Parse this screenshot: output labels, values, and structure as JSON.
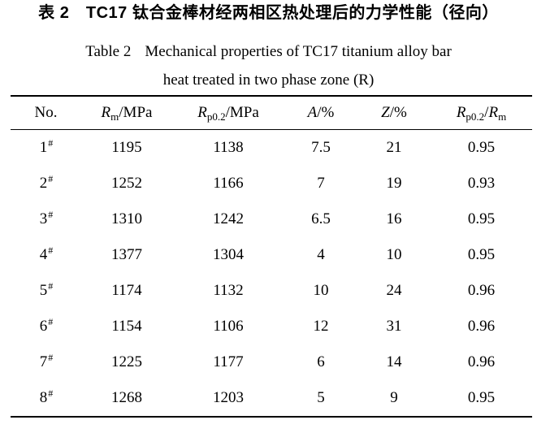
{
  "titles": {
    "zh": "表 2　TC17 钛合金棒材经两相区热处理后的力学性能（径向）",
    "en_label": "Table 2",
    "en_line1": "Mechanical properties of TC17 titanium alloy bar",
    "en_line2": "heat treated in two phase zone (R)"
  },
  "table": {
    "columns": [
      {
        "label": "No."
      },
      {
        "symbol": "R",
        "sub": "m",
        "suffix": "/MPa"
      },
      {
        "symbol": "R",
        "sub": "p0.2",
        "suffix": "/MPa"
      },
      {
        "symbol": "A",
        "suffix": "/%"
      },
      {
        "symbol": "Z",
        "suffix": "/%"
      },
      {
        "symbol": "R",
        "sub": "p0.2",
        "slash": "/",
        "symbol2": "R",
        "sub2": "m"
      }
    ],
    "rows": [
      {
        "no": "1",
        "mark": "#",
        "rm": "1195",
        "rp02": "1138",
        "a": "7.5",
        "z": "21",
        "ratio": "0.95"
      },
      {
        "no": "2",
        "mark": "#",
        "rm": "1252",
        "rp02": "1166",
        "a": "7",
        "z": "19",
        "ratio": "0.93"
      },
      {
        "no": "3",
        "mark": "#",
        "rm": "1310",
        "rp02": "1242",
        "a": "6.5",
        "z": "16",
        "ratio": "0.95"
      },
      {
        "no": "4",
        "mark": "#",
        "rm": "1377",
        "rp02": "1304",
        "a": "4",
        "z": "10",
        "ratio": "0.95"
      },
      {
        "no": "5",
        "mark": "#",
        "rm": "1174",
        "rp02": "1132",
        "a": "10",
        "z": "24",
        "ratio": "0.96"
      },
      {
        "no": "6",
        "mark": "#",
        "rm": "1154",
        "rp02": "1106",
        "a": "12",
        "z": "31",
        "ratio": "0.96"
      },
      {
        "no": "7",
        "mark": "#",
        "rm": "1225",
        "rp02": "1177",
        "a": "6",
        "z": "14",
        "ratio": "0.96"
      },
      {
        "no": "8",
        "mark": "#",
        "rm": "1268",
        "rp02": "1203",
        "a": "5",
        "z": "9",
        "ratio": "0.95"
      }
    ]
  },
  "colors": {
    "text": "#000000",
    "background": "#ffffff",
    "rule": "#000000"
  }
}
